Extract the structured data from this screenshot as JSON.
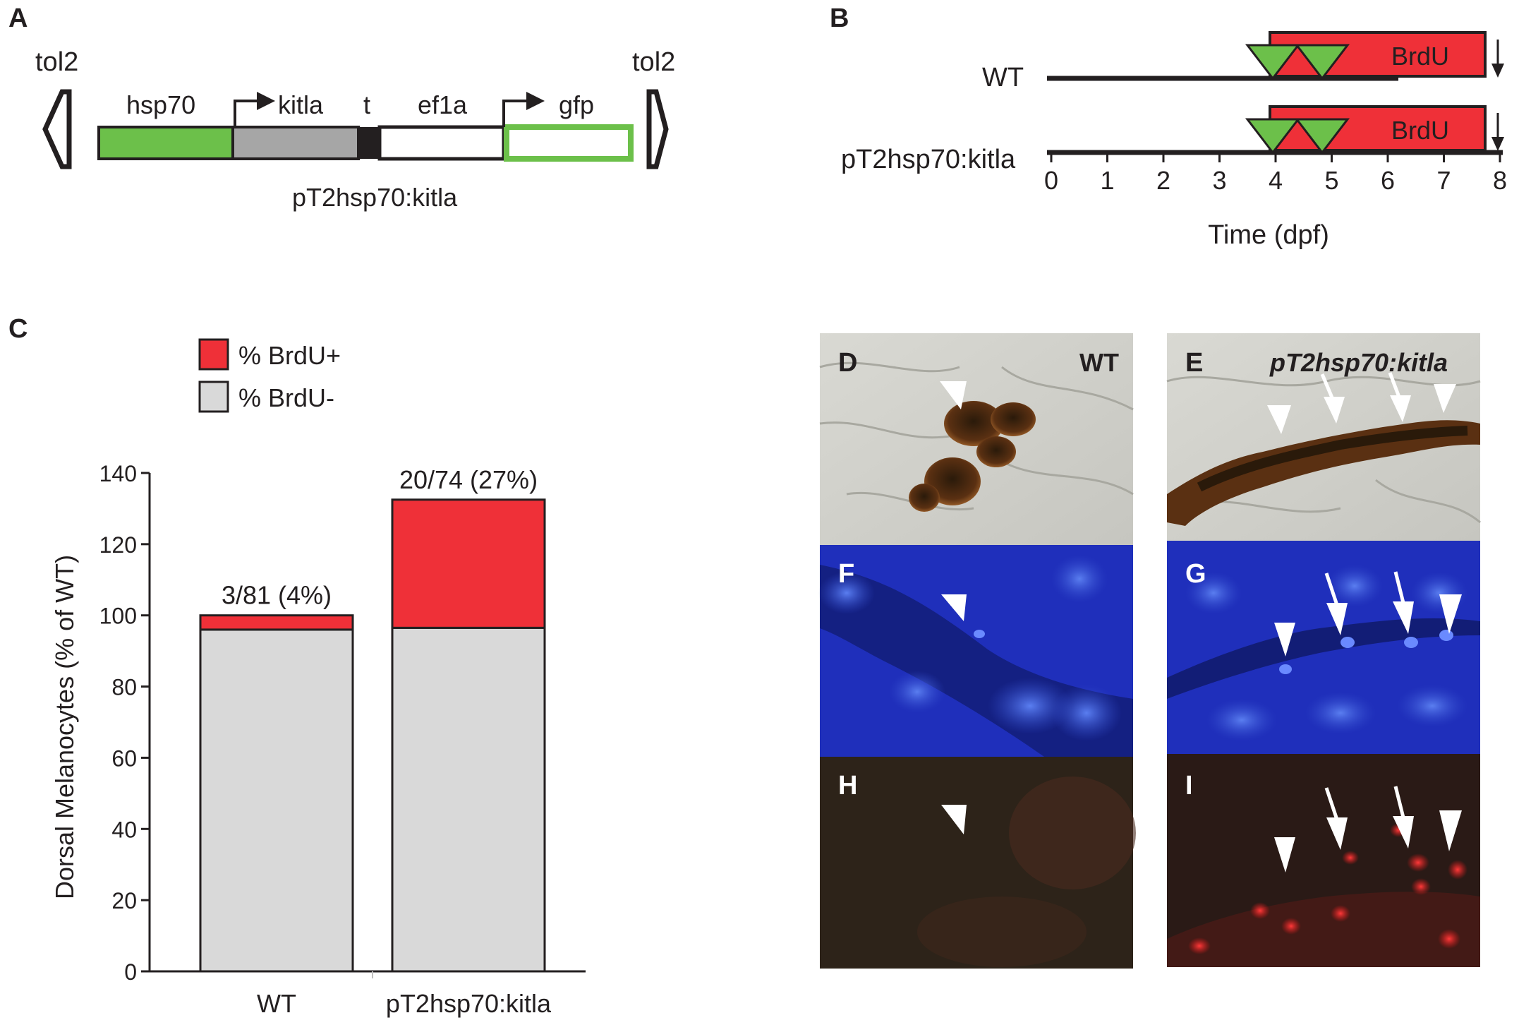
{
  "panels": {
    "A": {
      "letter": "A",
      "tol2_left": "tol2",
      "tol2_right": "tol2",
      "hsp70": "hsp70",
      "kitla": "kitla",
      "t": "t",
      "ef1a": "ef1a",
      "gfp": "gfp",
      "construct": "pT2hsp70:kitla",
      "colors": {
        "hsp70": "#6cc04a",
        "kitla": "#a6a6a6",
        "gfp_outline": "#6cc04a"
      }
    },
    "B": {
      "letter": "B",
      "row1": "WT",
      "row2": "pT2hsp70:kitla",
      "brdu1": "BrdU",
      "brdu2": "BrdU",
      "ticks": [
        "0",
        "1",
        "2",
        "3",
        "4",
        "5",
        "6",
        "7",
        "8"
      ],
      "xlabel": "Time (dpf)",
      "colors": {
        "brdu": "#ef3038",
        "triangle": "#6cc04a"
      }
    },
    "C": {
      "letter": "C",
      "legend": [
        "% BrdU+",
        "% BrdU-"
      ],
      "ylabel": "Dorsal Melanocytes (% of WT)"
    },
    "images": {
      "D": {
        "letter": "D",
        "label": "WT"
      },
      "E": {
        "letter": "E",
        "label": "pT2hsp70:kitla"
      },
      "F": {
        "letter": "F"
      },
      "G": {
        "letter": "G"
      },
      "H": {
        "letter": "H"
      },
      "I": {
        "letter": "I"
      }
    }
  },
  "chart_data": {
    "type": "bar",
    "stacked": true,
    "categories": [
      "WT",
      "pT2hsp70:kitla"
    ],
    "series": [
      {
        "name": "% BrdU-",
        "values": [
          96,
          96.5
        ],
        "color": "#d9d9d9"
      },
      {
        "name": "% BrdU+",
        "values": [
          4,
          36
        ],
        "color": "#ef3038"
      }
    ],
    "annotations": [
      "3/81 (4%)",
      "20/74 (27%)"
    ],
    "ylabel": "Dorsal Melanocytes (% of WT)",
    "yticks": [
      "0",
      "20",
      "40",
      "60",
      "80",
      "100",
      "120",
      "140"
    ],
    "ylim": [
      0,
      140
    ],
    "legend_position": "top-left"
  }
}
